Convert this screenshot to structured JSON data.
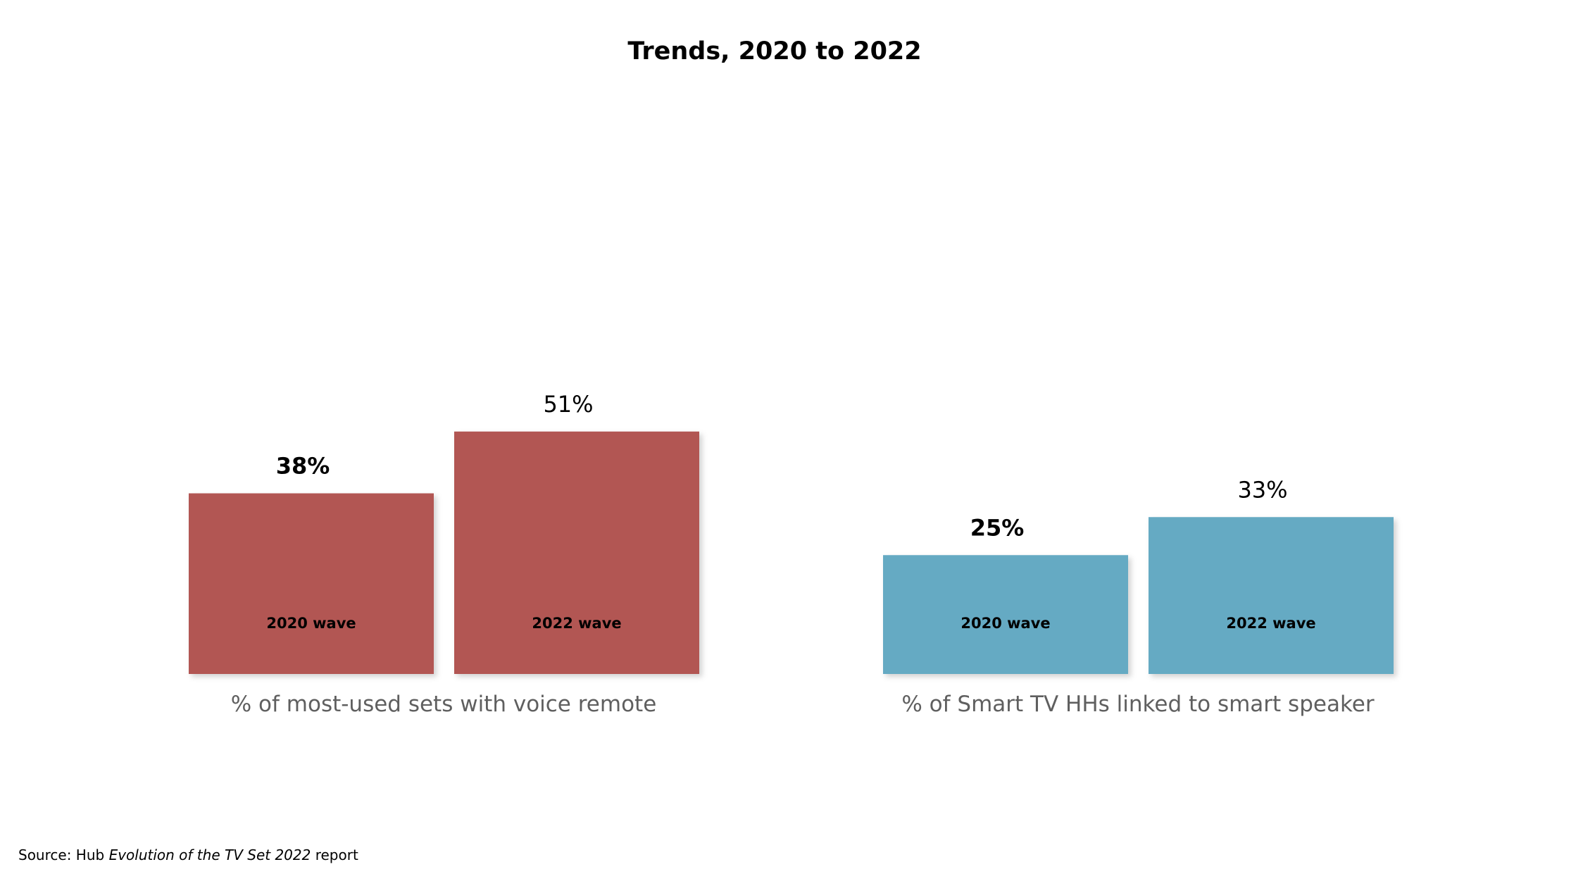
{
  "chart_data": {
    "type": "bar",
    "title": "Trends, 2020 to 2022",
    "xlabel": "",
    "ylabel": "",
    "ylim": [
      0,
      100
    ],
    "grid": false,
    "groups": [
      {
        "name": "% of most-used sets with voice remote",
        "color": "#b25752",
        "bars": [
          {
            "category": "2020 wave",
            "value": 38,
            "label": "38%"
          },
          {
            "category": "2022 wave",
            "value": 51,
            "label": "51%"
          }
        ]
      },
      {
        "name": "% of Smart TV HHs linked to smart speaker",
        "color": "#65aac3",
        "bars": [
          {
            "category": "2020 wave",
            "value": 25,
            "label": "25%"
          },
          {
            "category": "2022 wave",
            "value": 33,
            "label": "33%"
          }
        ]
      }
    ]
  },
  "source": {
    "prefix": "Source: Hub ",
    "italic": "Evolution of the TV Set 2022",
    "suffix": " report"
  }
}
